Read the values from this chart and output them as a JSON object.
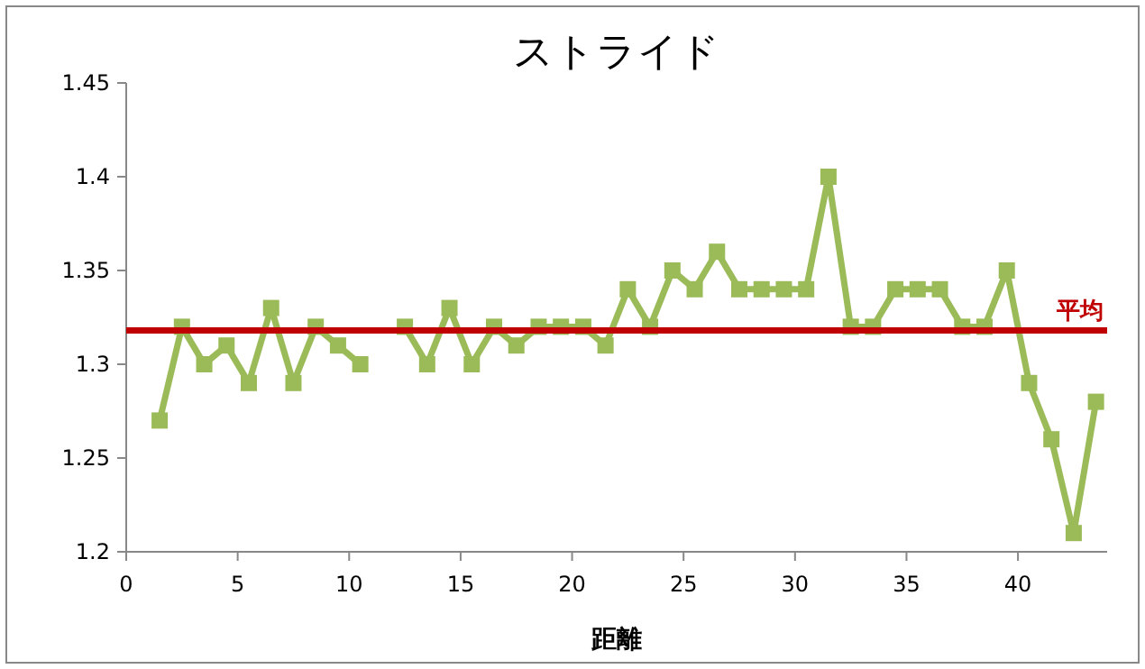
{
  "chart_data": {
    "type": "line",
    "title": "ストライド",
    "xlabel": "距離",
    "x": [
      1.5,
      2.5,
      3.5,
      4.5,
      5.5,
      6.5,
      7.5,
      8.5,
      9.5,
      10.5,
      11.5,
      12.5,
      13.5,
      14.5,
      15.5,
      16.5,
      17.5,
      18.5,
      19.5,
      20.5,
      21.5,
      22.5,
      23.5,
      24.5,
      25.5,
      26.5,
      27.5,
      28.5,
      29.5,
      30.5,
      31.5,
      32.5,
      33.5,
      34.5,
      35.5,
      36.5,
      37.5,
      38.5,
      39.5,
      40.5,
      41.5,
      42.5,
      43.5
    ],
    "series": [
      {
        "color": "#9bbb59",
        "values": [
          1.27,
          1.32,
          1.3,
          1.31,
          1.29,
          1.33,
          1.29,
          1.32,
          1.31,
          1.3,
          null,
          1.32,
          1.3,
          1.33,
          1.3,
          1.32,
          1.31,
          1.32,
          1.32,
          1.32,
          1.31,
          1.34,
          1.32,
          1.35,
          1.34,
          1.36,
          1.34,
          1.34,
          1.34,
          1.34,
          1.4,
          1.32,
          1.32,
          1.34,
          1.34,
          1.34,
          1.32,
          1.32,
          1.35,
          1.29,
          1.26,
          1.21,
          1.28
        ]
      }
    ],
    "xlim": [
      0,
      44
    ],
    "xticks": [
      0,
      5,
      10,
      15,
      20,
      25,
      30,
      35,
      40
    ],
    "ylim": [
      1.2,
      1.45
    ],
    "yticks": [
      1.2,
      1.25,
      1.3,
      1.35,
      1.4,
      1.45
    ],
    "marker": "square",
    "ref_lines": [
      {
        "axis": "y",
        "value": 1.318,
        "label": "平均",
        "color": "#c00000"
      }
    ]
  }
}
